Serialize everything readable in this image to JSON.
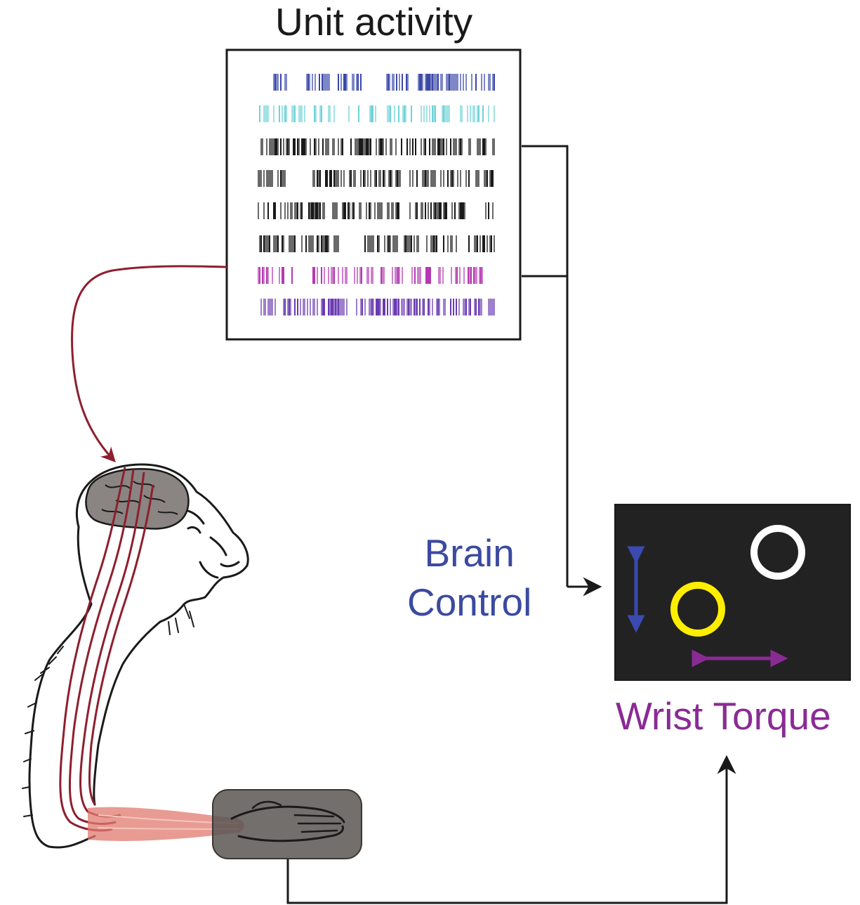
{
  "title": "Unit activity",
  "brain_control": {
    "line1": "Brain",
    "line2": "Control"
  },
  "wrist_torque": "Wrist Torque",
  "colors": {
    "spike_blue": "#3a48a8",
    "spike_cyan": "#6fd3d8",
    "spike_black": "#1a1a1a",
    "spike_magenta": "#b43ab0",
    "spike_purple": "#6a3bb0",
    "electrode": "#8e1f2e",
    "screen": "#222222",
    "target": "#ffffff",
    "cursor": "#ffee00",
    "arrow_blue": "#3a4ab0",
    "arrow_purple": "#8a2b94",
    "muscle": "#e07a6e",
    "manipulandum": "#5a5654",
    "brain": "#8a8582"
  },
  "icons": [
    "monkey-drawing",
    "brain-illustration",
    "forearm-muscle",
    "hand-manipulandum"
  ]
}
